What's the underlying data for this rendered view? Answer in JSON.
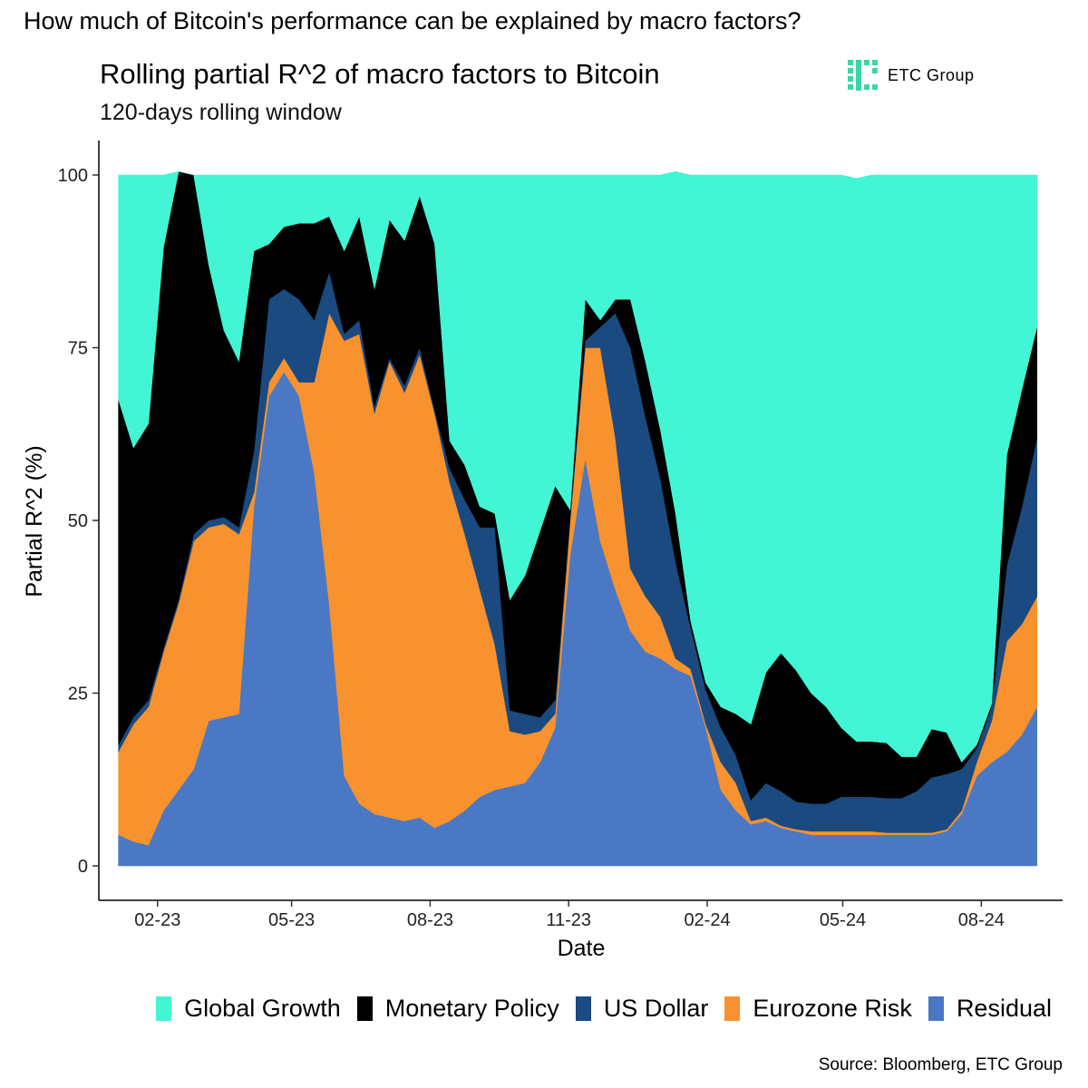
{
  "header": {
    "question": "How much of Bitcoin's performance can be explained by macro factors?",
    "title": "Rolling partial R^2 of macro factors to Bitcoin",
    "subtitle": "120-days rolling window"
  },
  "logo": {
    "text": "ETC Group",
    "color": "#3ad6a6"
  },
  "source": "Source: Bloomberg, ETC Group",
  "chart_data": {
    "type": "area",
    "stacked": true,
    "xlabel": "Date",
    "ylabel": "Partial R^2 (%)",
    "ylim": [
      0,
      100
    ],
    "yticks": [
      0,
      25,
      50,
      75,
      100
    ],
    "xlim": [
      "2022-12-24",
      "2024-09-24"
    ],
    "xticks": [
      {
        "label": "02-23",
        "date": "2023-02-01"
      },
      {
        "label": "05-23",
        "date": "2023-05-01"
      },
      {
        "label": "08-23",
        "date": "2023-08-01"
      },
      {
        "label": "11-23",
        "date": "2023-11-01"
      },
      {
        "label": "02-24",
        "date": "2024-02-01"
      },
      {
        "label": "05-24",
        "date": "2024-05-01"
      },
      {
        "label": "08-24",
        "date": "2024-08-01"
      }
    ],
    "grid": false,
    "legend_position": "bottom",
    "x": [
      "2023-01-06",
      "2023-01-16",
      "2023-01-26",
      "2023-02-05",
      "2023-02-15",
      "2023-02-25",
      "2023-03-07",
      "2023-03-17",
      "2023-03-27",
      "2023-04-06",
      "2023-04-16",
      "2023-04-26",
      "2023-05-06",
      "2023-05-16",
      "2023-05-26",
      "2023-06-05",
      "2023-06-15",
      "2023-06-25",
      "2023-07-05",
      "2023-07-15",
      "2023-07-25",
      "2023-08-04",
      "2023-08-14",
      "2023-08-24",
      "2023-09-03",
      "2023-09-13",
      "2023-09-23",
      "2023-10-03",
      "2023-10-13",
      "2023-10-23",
      "2023-11-02",
      "2023-11-12",
      "2023-11-22",
      "2023-12-02",
      "2023-12-12",
      "2023-12-22",
      "2024-01-01",
      "2024-01-11",
      "2024-01-21",
      "2024-01-31",
      "2024-02-10",
      "2024-02-20",
      "2024-03-01",
      "2024-03-11",
      "2024-03-21",
      "2024-03-31",
      "2024-04-10",
      "2024-04-20",
      "2024-04-30",
      "2024-05-10",
      "2024-05-20",
      "2024-05-30",
      "2024-06-09",
      "2024-06-19",
      "2024-06-29",
      "2024-07-09",
      "2024-07-19",
      "2024-07-29",
      "2024-08-08",
      "2024-08-18",
      "2024-08-28",
      "2024-09-07"
    ],
    "series": [
      {
        "name": "Residual",
        "color": "#4a78c4",
        "values": [
          4.5,
          3.5,
          3,
          8,
          11,
          14,
          21,
          21.5,
          22,
          52,
          68,
          71.5,
          68,
          57,
          38,
          13,
          9,
          7.5,
          7,
          6.5,
          7,
          5.5,
          6.5,
          8,
          10,
          11,
          11.5,
          12,
          15,
          20,
          45,
          59,
          47,
          40,
          34,
          31,
          30,
          28.5,
          27.5,
          20,
          11,
          8,
          6,
          6.5,
          5.5,
          5,
          4.5,
          4.5,
          4.5,
          4.5,
          4.5,
          4.5,
          4.5,
          4.5,
          4.5,
          5,
          7.5,
          13,
          15,
          16.5,
          19,
          23
        ]
      },
      {
        "name": "Eurozone Risk",
        "color": "#f7922e",
        "values": [
          12,
          17,
          20,
          23,
          27,
          33,
          28,
          28,
          26,
          2,
          2,
          2,
          2,
          13,
          42,
          63,
          68,
          58,
          66,
          62,
          67,
          60,
          49,
          40,
          30,
          21,
          8,
          7,
          4.5,
          2,
          5,
          16,
          28,
          22,
          9,
          8,
          6,
          1.5,
          1,
          0.5,
          4,
          4,
          0.5,
          0.5,
          0.3,
          0.3,
          0.5,
          0.5,
          0.5,
          0.5,
          0.5,
          0.3,
          0.3,
          0.3,
          0.3,
          0.3,
          0.5,
          2,
          6,
          16,
          16,
          16
        ]
      },
      {
        "name": "US Dollar",
        "color": "#1a4a80",
        "values": [
          1,
          1,
          1,
          0.5,
          0.5,
          1,
          1,
          1,
          1,
          6,
          12,
          10,
          12,
          9,
          6,
          1,
          2,
          1,
          0.5,
          1,
          1,
          0.5,
          2,
          5,
          9,
          17,
          3,
          3,
          2,
          2,
          0.5,
          1,
          3,
          18,
          32,
          26,
          20,
          14,
          6,
          5,
          5,
          4,
          3,
          5,
          5,
          4,
          4,
          4,
          5,
          5,
          5,
          5,
          5,
          6,
          8,
          8,
          6,
          2,
          2,
          11,
          17,
          23
        ]
      },
      {
        "name": "Monetary Policy",
        "color": "#000000",
        "values": [
          50,
          39,
          40,
          58,
          62,
          52,
          37,
          27,
          24,
          29,
          8,
          9,
          11,
          14,
          8,
          12,
          15,
          17,
          20,
          21,
          22,
          24,
          4,
          5,
          3,
          2,
          16,
          20,
          27,
          31,
          1,
          6,
          1,
          2,
          7,
          8,
          7,
          7,
          1,
          1,
          3,
          6,
          11,
          16,
          20,
          19,
          16,
          14,
          10,
          8,
          8,
          8,
          6,
          5,
          7,
          6,
          1,
          0.5,
          0.5,
          16,
          17,
          16
        ]
      },
      {
        "name": "Global Growth",
        "color": "#42f5d4",
        "values": [
          32.5,
          39.5,
          36,
          10.5,
          0,
          0,
          13,
          22.5,
          27,
          11,
          10,
          7.5,
          7,
          7,
          6,
          11,
          6,
          16.5,
          6.5,
          9.5,
          3,
          10,
          38.5,
          42,
          48,
          49,
          61.5,
          58,
          51.5,
          45,
          48.5,
          18,
          21,
          18,
          18,
          27,
          37,
          49.5,
          64.5,
          73.5,
          77,
          78,
          79.5,
          72,
          69.2,
          71.7,
          75,
          77,
          80,
          81.5,
          82,
          82.2,
          84.2,
          84.2,
          80.2,
          80.7,
          85,
          82.5,
          76.5,
          40.5,
          31,
          22
        ]
      }
    ],
    "legend_order": [
      "Global Growth",
      "Monetary Policy",
      "US Dollar",
      "Eurozone Risk",
      "Residual"
    ]
  }
}
